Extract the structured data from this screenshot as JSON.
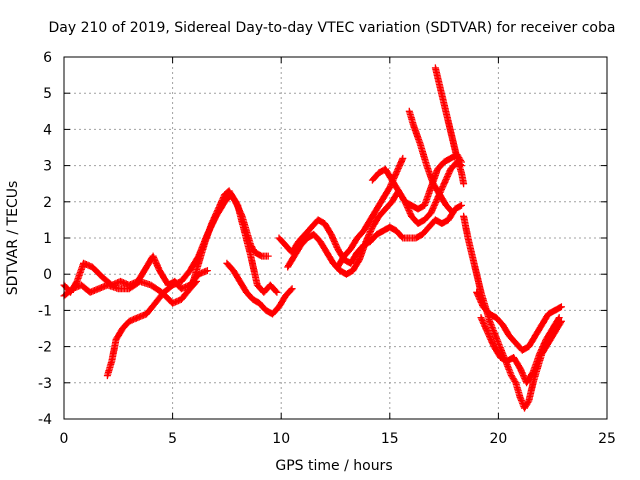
{
  "chart_data": {
    "type": "scatter",
    "title": "Day 210 of 2019, Sidereal Day-to-day VTEC variation (SDTVAR) for receiver coba",
    "xlabel": "GPS time / hours",
    "ylabel": "SDTVAR / TECUs",
    "xlim": [
      0,
      25
    ],
    "ylim": [
      -4,
      6
    ],
    "xticks": [
      0,
      5,
      10,
      15,
      20,
      25
    ],
    "yticks": [
      -4,
      -3,
      -2,
      -1,
      0,
      1,
      2,
      3,
      4,
      5,
      6
    ],
    "grid": true,
    "legend": "none",
    "marker": "plus",
    "color": "#ff0000",
    "series": [
      {
        "values": [
          [
            0.0,
            -0.3
          ],
          [
            0.3,
            -0.5
          ],
          [
            0.6,
            -0.2
          ],
          [
            0.9,
            0.3
          ],
          [
            1.3,
            0.2
          ],
          [
            1.8,
            -0.1
          ],
          [
            2.2,
            -0.3
          ],
          [
            2.6,
            -0.2
          ],
          [
            3.0,
            -0.3
          ],
          [
            3.4,
            -0.2
          ],
          [
            3.8,
            0.2
          ],
          [
            4.1,
            0.5
          ],
          [
            4.4,
            0.1
          ],
          [
            4.8,
            -0.3
          ],
          [
            5.1,
            -0.2
          ],
          [
            5.4,
            -0.4
          ],
          [
            5.8,
            -0.3
          ],
          [
            6.2,
            0.0
          ],
          [
            6.6,
            0.1
          ]
        ]
      },
      {
        "values": [
          [
            0.0,
            -0.6
          ],
          [
            0.4,
            -0.4
          ],
          [
            0.8,
            -0.3
          ],
          [
            1.2,
            -0.5
          ],
          [
            1.6,
            -0.4
          ],
          [
            2.0,
            -0.3
          ],
          [
            2.5,
            -0.4
          ],
          [
            3.0,
            -0.4
          ],
          [
            3.5,
            -0.2
          ],
          [
            4.0,
            -0.3
          ],
          [
            4.5,
            -0.5
          ],
          [
            5.0,
            -0.8
          ],
          [
            5.4,
            -0.7
          ],
          [
            5.8,
            -0.4
          ],
          [
            6.1,
            -0.2
          ]
        ]
      },
      {
        "values": [
          [
            2.0,
            -2.8
          ],
          [
            2.2,
            -2.4
          ],
          [
            2.4,
            -1.8
          ],
          [
            2.7,
            -1.5
          ],
          [
            3.0,
            -1.3
          ],
          [
            3.4,
            -1.2
          ],
          [
            3.8,
            -1.1
          ],
          [
            4.2,
            -0.8
          ],
          [
            4.6,
            -0.5
          ],
          [
            5.0,
            -0.3
          ],
          [
            5.4,
            -0.2
          ],
          [
            5.8,
            0.1
          ],
          [
            6.2,
            0.5
          ],
          [
            6.6,
            1.1
          ],
          [
            7.0,
            1.6
          ],
          [
            7.4,
            2.0
          ],
          [
            7.7,
            2.2
          ],
          [
            8.0,
            1.9
          ],
          [
            8.3,
            1.2
          ],
          [
            8.6,
            0.5
          ],
          [
            8.9,
            -0.3
          ],
          [
            9.2,
            -0.5
          ],
          [
            9.5,
            -0.3
          ],
          [
            9.8,
            -0.5
          ]
        ]
      },
      {
        "values": [
          [
            5.9,
            -0.3
          ],
          [
            6.2,
            0.3
          ],
          [
            6.5,
            0.9
          ],
          [
            6.8,
            1.4
          ],
          [
            7.1,
            1.8
          ],
          [
            7.4,
            2.2
          ],
          [
            7.6,
            2.3
          ],
          [
            7.9,
            2.0
          ],
          [
            8.2,
            1.6
          ],
          [
            8.4,
            1.2
          ],
          [
            8.6,
            0.8
          ],
          [
            8.8,
            0.6
          ],
          [
            9.1,
            0.5
          ],
          [
            9.4,
            0.5
          ]
        ]
      },
      {
        "values": [
          [
            7.5,
            0.3
          ],
          [
            7.8,
            0.1
          ],
          [
            8.1,
            -0.2
          ],
          [
            8.4,
            -0.5
          ],
          [
            8.7,
            -0.7
          ],
          [
            9.0,
            -0.8
          ],
          [
            9.3,
            -1.0
          ],
          [
            9.6,
            -1.1
          ],
          [
            9.9,
            -0.9
          ],
          [
            10.2,
            -0.6
          ],
          [
            10.5,
            -0.4
          ]
        ]
      },
      {
        "values": [
          [
            9.9,
            1.0
          ],
          [
            10.2,
            0.8
          ],
          [
            10.5,
            0.6
          ],
          [
            10.8,
            0.9
          ],
          [
            11.1,
            1.1
          ],
          [
            11.4,
            1.3
          ],
          [
            11.7,
            1.5
          ],
          [
            12.0,
            1.4
          ],
          [
            12.3,
            1.1
          ],
          [
            12.6,
            0.7
          ],
          [
            12.9,
            0.4
          ],
          [
            13.2,
            0.3
          ],
          [
            13.5,
            0.6
          ],
          [
            13.8,
            0.8
          ],
          [
            14.1,
            0.9
          ],
          [
            14.4,
            1.1
          ],
          [
            14.7,
            1.2
          ],
          [
            15.0,
            1.3
          ],
          [
            15.3,
            1.2
          ],
          [
            15.6,
            1.0
          ],
          [
            15.9,
            1.0
          ],
          [
            16.2,
            1.0
          ],
          [
            16.5,
            1.1
          ],
          [
            16.8,
            1.3
          ],
          [
            17.1,
            1.5
          ],
          [
            17.4,
            1.4
          ],
          [
            17.7,
            1.5
          ],
          [
            18.0,
            1.8
          ],
          [
            18.3,
            1.9
          ]
        ]
      },
      {
        "values": [
          [
            10.3,
            0.2
          ],
          [
            10.6,
            0.5
          ],
          [
            10.9,
            0.8
          ],
          [
            11.2,
            1.0
          ],
          [
            11.5,
            1.1
          ],
          [
            11.8,
            0.9
          ],
          [
            12.1,
            0.6
          ],
          [
            12.4,
            0.3
          ],
          [
            12.7,
            0.1
          ],
          [
            13.0,
            0.0
          ],
          [
            13.3,
            0.1
          ],
          [
            13.6,
            0.4
          ],
          [
            13.9,
            0.9
          ],
          [
            14.2,
            1.3
          ],
          [
            14.5,
            1.6
          ],
          [
            14.8,
            1.8
          ],
          [
            15.1,
            2.0
          ],
          [
            15.4,
            2.3
          ],
          [
            15.7,
            2.0
          ],
          [
            16.0,
            1.6
          ],
          [
            16.3,
            1.4
          ],
          [
            16.6,
            1.5
          ],
          [
            16.9,
            1.7
          ],
          [
            17.2,
            2.1
          ],
          [
            17.5,
            2.5
          ],
          [
            17.8,
            2.9
          ],
          [
            18.1,
            3.1
          ],
          [
            18.3,
            3.0
          ]
        ]
      },
      {
        "values": [
          [
            12.6,
            0.2
          ],
          [
            12.9,
            0.5
          ],
          [
            13.2,
            0.7
          ],
          [
            13.5,
            1.0
          ],
          [
            13.8,
            1.2
          ],
          [
            14.1,
            1.5
          ],
          [
            14.4,
            1.8
          ],
          [
            14.7,
            2.1
          ],
          [
            15.0,
            2.4
          ],
          [
            15.3,
            2.8
          ],
          [
            15.6,
            3.2
          ]
        ]
      },
      {
        "values": [
          [
            14.2,
            2.6
          ],
          [
            14.5,
            2.8
          ],
          [
            14.8,
            2.9
          ],
          [
            15.1,
            2.6
          ],
          [
            15.4,
            2.3
          ],
          [
            15.7,
            2.0
          ],
          [
            16.0,
            1.9
          ],
          [
            16.3,
            1.8
          ],
          [
            16.6,
            1.9
          ],
          [
            16.9,
            2.4
          ],
          [
            17.2,
            2.9
          ],
          [
            17.5,
            3.1
          ],
          [
            17.8,
            3.2
          ],
          [
            18.1,
            3.3
          ],
          [
            18.3,
            3.1
          ]
        ]
      },
      {
        "values": [
          [
            15.9,
            4.5
          ],
          [
            16.1,
            4.1
          ],
          [
            16.4,
            3.6
          ],
          [
            16.7,
            3.0
          ],
          [
            17.0,
            2.5
          ],
          [
            17.3,
            2.2
          ],
          [
            17.6,
            1.9
          ],
          [
            17.9,
            1.7
          ]
        ]
      },
      {
        "values": [
          [
            17.1,
            5.7
          ],
          [
            17.3,
            5.2
          ],
          [
            17.5,
            4.7
          ],
          [
            17.7,
            4.2
          ],
          [
            17.9,
            3.7
          ],
          [
            18.1,
            3.2
          ],
          [
            18.3,
            2.8
          ],
          [
            18.4,
            2.5
          ]
        ]
      },
      {
        "values": [
          [
            18.4,
            1.6
          ],
          [
            18.6,
            1.0
          ],
          [
            18.8,
            0.5
          ],
          [
            19.0,
            0.0
          ],
          [
            19.2,
            -0.5
          ],
          [
            19.4,
            -0.9
          ],
          [
            19.6,
            -1.3
          ],
          [
            19.8,
            -1.6
          ],
          [
            20.0,
            -1.9
          ],
          [
            20.2,
            -2.2
          ],
          [
            20.4,
            -2.5
          ],
          [
            20.6,
            -2.8
          ],
          [
            20.8,
            -3.0
          ],
          [
            21.0,
            -3.4
          ],
          [
            21.2,
            -3.7
          ],
          [
            21.4,
            -3.5
          ],
          [
            21.6,
            -3.0
          ],
          [
            21.8,
            -2.6
          ],
          [
            22.0,
            -2.2
          ],
          [
            22.3,
            -1.9
          ],
          [
            22.6,
            -1.6
          ],
          [
            22.9,
            -1.3
          ]
        ]
      },
      {
        "values": [
          [
            19.2,
            -1.2
          ],
          [
            19.5,
            -1.6
          ],
          [
            19.8,
            -2.0
          ],
          [
            20.1,
            -2.3
          ],
          [
            20.4,
            -2.4
          ],
          [
            20.7,
            -2.3
          ],
          [
            21.0,
            -2.6
          ],
          [
            21.3,
            -3.0
          ],
          [
            21.6,
            -2.7
          ],
          [
            21.9,
            -2.2
          ],
          [
            22.2,
            -1.8
          ],
          [
            22.5,
            -1.5
          ],
          [
            22.8,
            -1.2
          ]
        ]
      },
      {
        "values": [
          [
            19.0,
            -0.5
          ],
          [
            19.3,
            -0.9
          ],
          [
            19.6,
            -1.1
          ],
          [
            19.9,
            -1.2
          ],
          [
            20.2,
            -1.4
          ],
          [
            20.5,
            -1.7
          ],
          [
            20.8,
            -1.9
          ],
          [
            21.1,
            -2.1
          ],
          [
            21.4,
            -2.0
          ],
          [
            21.7,
            -1.7
          ],
          [
            22.0,
            -1.4
          ],
          [
            22.3,
            -1.1
          ],
          [
            22.6,
            -1.0
          ],
          [
            22.9,
            -0.9
          ]
        ]
      }
    ]
  }
}
